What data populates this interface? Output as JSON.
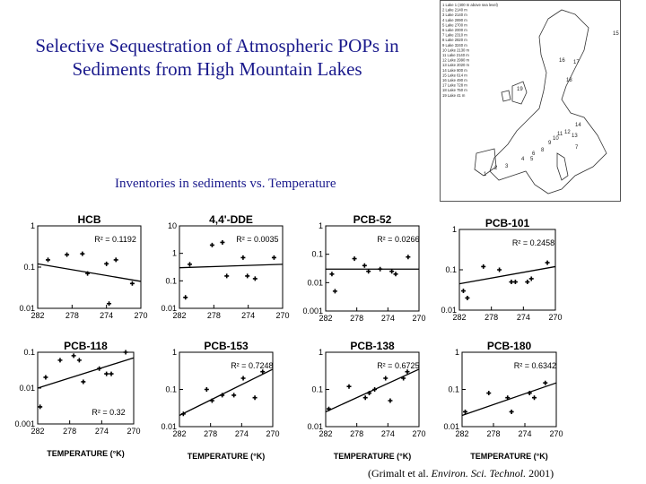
{
  "title": "Selective Sequestration of Atmospheric POPs in Sediments from High Mountain Lakes",
  "subtitle": "Inventories in sediments vs. Temperature",
  "citation": {
    "pre": "(Grimalt et al. ",
    "journal": "Environ. Sci. Technol.",
    "post": " 2001)"
  },
  "map": {
    "legend": [
      "1 Lake 1 (400 m above sea level)",
      "2 Lake 2140 m",
      "3 Lake 2140 m",
      "4 Lake 2890 m",
      "5 Lake 2700 m",
      "6 Lake 2000 m",
      "7 Lake 2310 m",
      "8 Lake 2820 m",
      "9 Lake 3240 m",
      "10 Lake 2130 m",
      "11 Lake 2140 m",
      "12 Lake 2990 m",
      "13 Lake 2020 m",
      "14 Lake 800 m",
      "15 Lake 614 m",
      "16 Lake 490 m",
      "17 Lake 728 m",
      "18 Lake 750 m",
      "19 Lake 41 m"
    ],
    "labels": [
      "15",
      "16",
      "17",
      "18",
      "19",
      "14",
      "12",
      "13",
      "11",
      "10",
      "9",
      "8",
      "7",
      "6",
      "5",
      "4",
      "3",
      "2",
      "1"
    ]
  },
  "chart_data": [
    {
      "type": "scatter",
      "title": "HCB",
      "xlabel": "",
      "xlim": [
        282,
        270
      ],
      "ylim": [
        0.01,
        1
      ],
      "yscale": "log",
      "xticks": [
        "282",
        "278",
        "274",
        "270"
      ],
      "yticks": [
        "0.01",
        "0.1",
        "1"
      ],
      "r2": "R² = 0.1192",
      "points": [
        [
          280.8,
          0.15
        ],
        [
          278.6,
          0.2
        ],
        [
          276.8,
          0.21
        ],
        [
          276.2,
          0.07
        ],
        [
          274.0,
          0.12
        ],
        [
          273.7,
          0.013
        ],
        [
          272.9,
          0.15
        ],
        [
          271.0,
          0.04
        ]
      ],
      "trend": [
        [
          282,
          0.12
        ],
        [
          270,
          0.045
        ]
      ]
    },
    {
      "type": "scatter",
      "title": "4,4'-DDE",
      "xlabel": "",
      "xlim": [
        282,
        270
      ],
      "ylim": [
        0.01,
        10
      ],
      "yscale": "log",
      "xticks": [
        "282",
        "278",
        "274",
        "270"
      ],
      "yticks": [
        "0.01",
        "0.1",
        "1",
        "10"
      ],
      "r2": "R² = 0.0035",
      "points": [
        [
          281.3,
          0.025
        ],
        [
          280.8,
          0.4
        ],
        [
          278.2,
          2.0
        ],
        [
          277.0,
          2.5
        ],
        [
          276.5,
          0.15
        ],
        [
          274.6,
          0.7
        ],
        [
          274.1,
          0.15
        ],
        [
          273.2,
          0.12
        ],
        [
          271.0,
          0.7
        ]
      ],
      "trend": [
        [
          282,
          0.3
        ],
        [
          270,
          0.4
        ]
      ]
    },
    {
      "type": "scatter",
      "title": "PCB-52",
      "xlabel": "",
      "xlim": [
        282,
        270
      ],
      "ylim": [
        0.001,
        1
      ],
      "yscale": "log",
      "xticks": [
        "282",
        "278",
        "274",
        "270"
      ],
      "yticks": [
        "0.001",
        "0.01",
        "0.1",
        "1"
      ],
      "r2": "R² = 0.0266",
      "points": [
        [
          281.2,
          0.02
        ],
        [
          280.8,
          0.005
        ],
        [
          278.3,
          0.07
        ],
        [
          277.0,
          0.04
        ],
        [
          276.5,
          0.025
        ],
        [
          275.0,
          0.03
        ],
        [
          273.5,
          0.025
        ],
        [
          273.0,
          0.02
        ],
        [
          271.4,
          0.08
        ]
      ],
      "trend": [
        [
          282,
          0.03
        ],
        [
          270,
          0.03
        ]
      ]
    },
    {
      "type": "scatter",
      "title": "PCB-101",
      "xlabel": "",
      "xlim": [
        282,
        270
      ],
      "ylim": [
        0.01,
        1
      ],
      "yscale": "log",
      "xticks": [
        "282",
        "278",
        "274",
        "270"
      ],
      "yticks": [
        "0.01",
        "0.1",
        "1"
      ],
      "r2": "R² = 0.2458",
      "points": [
        [
          281.5,
          0.03
        ],
        [
          281.0,
          0.02
        ],
        [
          279.0,
          0.12
        ],
        [
          277.0,
          0.1
        ],
        [
          275.5,
          0.05
        ],
        [
          275.0,
          0.05
        ],
        [
          273.5,
          0.05
        ],
        [
          273.0,
          0.06
        ],
        [
          271.0,
          0.15
        ]
      ],
      "trend": [
        [
          282,
          0.045
        ],
        [
          270,
          0.12
        ]
      ]
    },
    {
      "type": "scatter",
      "title": "PCB-118",
      "xlabel": "TEMPERATURE (°K)",
      "xlim": [
        282,
        270
      ],
      "ylim": [
        0.001,
        0.1
      ],
      "yscale": "log",
      "xticks": [
        "282",
        "278",
        "274",
        "270"
      ],
      "yticks": [
        "0.001",
        "0.01",
        "0.1"
      ],
      "r2": "R² = 0.32",
      "points": [
        [
          281.7,
          0.003
        ],
        [
          281.0,
          0.02
        ],
        [
          279.2,
          0.06
        ],
        [
          277.5,
          0.08
        ],
        [
          276.8,
          0.06
        ],
        [
          276.3,
          0.015
        ],
        [
          274.3,
          0.035
        ],
        [
          273.4,
          0.025
        ],
        [
          272.8,
          0.025
        ],
        [
          271.0,
          0.1
        ]
      ],
      "trend": [
        [
          282,
          0.01
        ],
        [
          270,
          0.07
        ]
      ]
    },
    {
      "type": "scatter",
      "title": "PCB-153",
      "xlabel": "TEMPERATURE (°K)",
      "xlim": [
        282,
        270
      ],
      "ylim": [
        0.01,
        1
      ],
      "yscale": "log",
      "xticks": [
        "282",
        "278",
        "274",
        "270"
      ],
      "yticks": [
        "0.01",
        "0.1",
        "1"
      ],
      "r2": "R² = 0.7248",
      "points": [
        [
          281.5,
          0.022
        ],
        [
          278.5,
          0.1
        ],
        [
          277.8,
          0.05
        ],
        [
          276.5,
          0.07
        ],
        [
          275.0,
          0.07
        ],
        [
          273.8,
          0.2
        ],
        [
          272.3,
          0.06
        ],
        [
          271.3,
          0.3
        ]
      ],
      "trend": [
        [
          282,
          0.02
        ],
        [
          270,
          0.35
        ]
      ]
    },
    {
      "type": "scatter",
      "title": "PCB-138",
      "xlabel": "TEMPERATURE (°K)",
      "xlim": [
        282,
        270
      ],
      "ylim": [
        0.01,
        1
      ],
      "yscale": "log",
      "xticks": [
        "282",
        "278",
        "274",
        "270"
      ],
      "yticks": [
        "0.01",
        "0.1",
        "1"
      ],
      "r2": "R² = 0.6725",
      "points": [
        [
          281.6,
          0.03
        ],
        [
          279.0,
          0.12
        ],
        [
          276.9,
          0.06
        ],
        [
          276.4,
          0.08
        ],
        [
          275.7,
          0.1
        ],
        [
          274.3,
          0.2
        ],
        [
          273.7,
          0.05
        ],
        [
          272.0,
          0.2
        ],
        [
          271.5,
          0.3
        ]
      ],
      "trend": [
        [
          282,
          0.025
        ],
        [
          270,
          0.35
        ]
      ]
    },
    {
      "type": "scatter",
      "title": "PCB-180",
      "xlabel": "TEMPERATURE (°K)",
      "xlim": [
        282,
        270
      ],
      "ylim": [
        0.01,
        1
      ],
      "yscale": "log",
      "xticks": [
        "282",
        "278",
        "274",
        "270"
      ],
      "yticks": [
        "0.01",
        "0.1",
        "1"
      ],
      "r2": "R² = 0.6342",
      "points": [
        [
          281.6,
          0.025
        ],
        [
          278.6,
          0.08
        ],
        [
          276.2,
          0.06
        ],
        [
          275.7,
          0.025
        ],
        [
          273.4,
          0.08
        ],
        [
          272.8,
          0.06
        ],
        [
          271.4,
          0.15
        ]
      ],
      "trend": [
        [
          282,
          0.02
        ],
        [
          270,
          0.15
        ]
      ]
    }
  ]
}
